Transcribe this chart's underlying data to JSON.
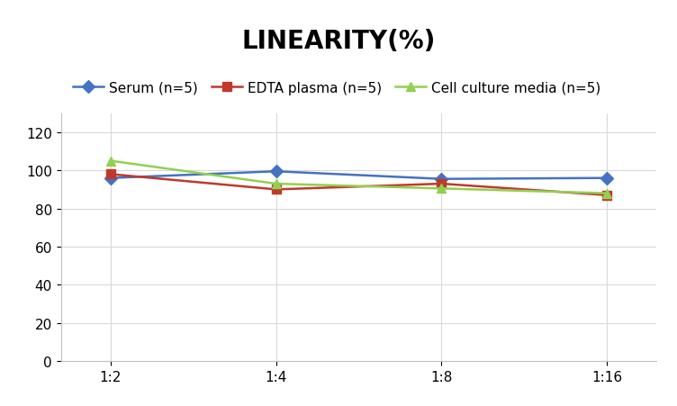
{
  "title": "LINEARITY(%)",
  "title_fontsize": 20,
  "title_fontweight": "bold",
  "x_labels": [
    "1:2",
    "1:4",
    "1:8",
    "1:16"
  ],
  "x_positions": [
    0,
    1,
    2,
    3
  ],
  "series": [
    {
      "name": "Serum (n=5)",
      "values": [
        96,
        99.5,
        95.5,
        96
      ],
      "color": "#4472C4",
      "marker": "D",
      "marker_size": 7,
      "linewidth": 1.8
    },
    {
      "name": "EDTA plasma (n=5)",
      "values": [
        98,
        90,
        93,
        87
      ],
      "color": "#C0392B",
      "marker": "s",
      "marker_size": 7,
      "linewidth": 1.8
    },
    {
      "name": "Cell culture media (n=5)",
      "values": [
        105,
        93,
        90.5,
        88
      ],
      "color": "#92D050",
      "marker": "^",
      "marker_size": 7,
      "linewidth": 1.8
    }
  ],
  "ylim": [
    0,
    130
  ],
  "yticks": [
    0,
    20,
    40,
    60,
    80,
    100,
    120
  ],
  "grid_color": "#d9d9d9",
  "background_color": "#ffffff",
  "legend_fontsize": 11,
  "tick_fontsize": 11
}
